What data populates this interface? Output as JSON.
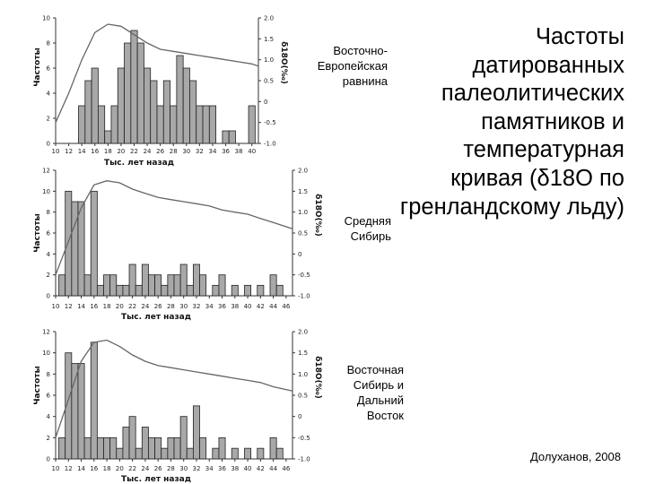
{
  "title": "Частоты датированных палеолитических памятников и температурная кривая (δ18О по гренландскому льду)",
  "source": "Долуханов, 2008",
  "colors": {
    "bar_fill": "#a8a8a8",
    "bar_stroke": "#222222",
    "curve": "#666666",
    "axis": "#333333"
  },
  "chart_data": [
    {
      "type": "bar",
      "region_label": "Восточно- Европейская равнина",
      "xlabel": "Тыс. лет назад",
      "ylabel": "Частоты",
      "y2label": "δ18O(‰)",
      "x_ticks": [
        "10",
        "12",
        "14",
        "16",
        "18",
        "20",
        "22",
        "24",
        "26",
        "28",
        "30",
        "32",
        "34",
        "36",
        "38",
        "40"
      ],
      "xlim": [
        10,
        41
      ],
      "ylim": [
        0,
        10
      ],
      "y_ticks": [
        "0",
        "2",
        "4",
        "6",
        "8",
        "10"
      ],
      "y2lim": [
        -1.0,
        2.0
      ],
      "y2_ticks": [
        "-1.0",
        "-0.5",
        "0",
        "0.5",
        "1.0",
        "1.5",
        "2.0"
      ],
      "bars": [
        {
          "x": 14,
          "value": 3
        },
        {
          "x": 15,
          "value": 5
        },
        {
          "x": 16,
          "value": 6
        },
        {
          "x": 17,
          "value": 3
        },
        {
          "x": 18,
          "value": 1
        },
        {
          "x": 19,
          "value": 3
        },
        {
          "x": 20,
          "value": 6
        },
        {
          "x": 21,
          "value": 8
        },
        {
          "x": 22,
          "value": 9
        },
        {
          "x": 23,
          "value": 8
        },
        {
          "x": 24,
          "value": 6
        },
        {
          "x": 25,
          "value": 5
        },
        {
          "x": 26,
          "value": 3
        },
        {
          "x": 27,
          "value": 5
        },
        {
          "x": 28,
          "value": 3
        },
        {
          "x": 29,
          "value": 7
        },
        {
          "x": 30,
          "value": 6
        },
        {
          "x": 31,
          "value": 5
        },
        {
          "x": 32,
          "value": 3
        },
        {
          "x": 33,
          "value": 3
        },
        {
          "x": 34,
          "value": 3
        },
        {
          "x": 36,
          "value": 1
        },
        {
          "x": 37,
          "value": 1
        },
        {
          "x": 40,
          "value": 3
        }
      ],
      "curve": {
        "x": [
          10,
          12,
          14,
          16,
          18,
          20,
          22,
          24,
          26,
          28,
          30,
          32,
          34,
          36,
          38,
          40,
          41
        ],
        "y": [
          -0.5,
          0.2,
          1.0,
          1.65,
          1.85,
          1.8,
          1.6,
          1.4,
          1.25,
          1.2,
          1.15,
          1.1,
          1.05,
          1.0,
          0.95,
          0.9,
          0.85
        ]
      }
    },
    {
      "type": "bar",
      "region_label": "Средняя Сибирь",
      "xlabel": "Тыс. лет назад",
      "ylabel": "Частоты",
      "y2label": "δ18O(‰)",
      "x_ticks": [
        "10",
        "12",
        "14",
        "16",
        "18",
        "20",
        "22",
        "24",
        "26",
        "28",
        "30",
        "32",
        "34",
        "36",
        "38",
        "40",
        "42",
        "44",
        "46"
      ],
      "xlim": [
        10,
        47
      ],
      "ylim": [
        0,
        12
      ],
      "y_ticks": [
        "0",
        "2",
        "4",
        "6",
        "8",
        "10",
        "12"
      ],
      "y2lim": [
        -1.0,
        2.0
      ],
      "y2_ticks": [
        "-1.0",
        "-0.5",
        "0",
        "0.5",
        "1.0",
        "1.5",
        "2.0"
      ],
      "bars": [
        {
          "x": 11,
          "value": 2
        },
        {
          "x": 12,
          "value": 10
        },
        {
          "x": 13,
          "value": 9
        },
        {
          "x": 14,
          "value": 9
        },
        {
          "x": 15,
          "value": 2
        },
        {
          "x": 16,
          "value": 10
        },
        {
          "x": 17,
          "value": 1
        },
        {
          "x": 18,
          "value": 2
        },
        {
          "x": 19,
          "value": 2
        },
        {
          "x": 20,
          "value": 1
        },
        {
          "x": 21,
          "value": 1
        },
        {
          "x": 22,
          "value": 3
        },
        {
          "x": 23,
          "value": 1
        },
        {
          "x": 24,
          "value": 3
        },
        {
          "x": 25,
          "value": 2
        },
        {
          "x": 26,
          "value": 2
        },
        {
          "x": 27,
          "value": 1
        },
        {
          "x": 28,
          "value": 2
        },
        {
          "x": 29,
          "value": 2
        },
        {
          "x": 30,
          "value": 3
        },
        {
          "x": 31,
          "value": 1
        },
        {
          "x": 32,
          "value": 3
        },
        {
          "x": 33,
          "value": 2
        },
        {
          "x": 35,
          "value": 1
        },
        {
          "x": 36,
          "value": 2
        },
        {
          "x": 38,
          "value": 1
        },
        {
          "x": 40,
          "value": 1
        },
        {
          "x": 42,
          "value": 1
        },
        {
          "x": 44,
          "value": 2
        },
        {
          "x": 45,
          "value": 1
        }
      ],
      "curve": {
        "x": [
          10,
          12,
          14,
          16,
          18,
          20,
          22,
          24,
          26,
          28,
          30,
          32,
          34,
          36,
          38,
          40,
          42,
          44,
          47
        ],
        "y": [
          -0.5,
          0.3,
          1.1,
          1.65,
          1.75,
          1.7,
          1.55,
          1.45,
          1.35,
          1.3,
          1.25,
          1.2,
          1.15,
          1.05,
          1.0,
          0.95,
          0.85,
          0.75,
          0.6
        ]
      }
    },
    {
      "type": "bar",
      "region_label": "Восточная Сибирь и Дальний Восток",
      "xlabel": "Тыс. лет назад",
      "ylabel": "Частоты",
      "y2label": "δ18O(‰)",
      "x_ticks": [
        "10",
        "12",
        "14",
        "16",
        "18",
        "20",
        "22",
        "24",
        "26",
        "28",
        "30",
        "32",
        "34",
        "36",
        "38",
        "40",
        "42",
        "44",
        "46"
      ],
      "xlim": [
        10,
        47
      ],
      "ylim": [
        0,
        12
      ],
      "y_ticks": [
        "0",
        "2",
        "4",
        "6",
        "8",
        "10",
        "12"
      ],
      "y2lim": [
        -1.0,
        2.0
      ],
      "y2_ticks": [
        "-1.0",
        "-0.5",
        "0",
        "0.5",
        "1.0",
        "1.5",
        "2.0"
      ],
      "bars": [
        {
          "x": 11,
          "value": 2
        },
        {
          "x": 12,
          "value": 10
        },
        {
          "x": 13,
          "value": 9
        },
        {
          "x": 14,
          "value": 9
        },
        {
          "x": 15,
          "value": 2
        },
        {
          "x": 16,
          "value": 11
        },
        {
          "x": 17,
          "value": 2
        },
        {
          "x": 18,
          "value": 2
        },
        {
          "x": 19,
          "value": 2
        },
        {
          "x": 20,
          "value": 1
        },
        {
          "x": 21,
          "value": 3
        },
        {
          "x": 22,
          "value": 4
        },
        {
          "x": 23,
          "value": 1
        },
        {
          "x": 24,
          "value": 3
        },
        {
          "x": 25,
          "value": 2
        },
        {
          "x": 26,
          "value": 2
        },
        {
          "x": 27,
          "value": 1
        },
        {
          "x": 28,
          "value": 2
        },
        {
          "x": 29,
          "value": 2
        },
        {
          "x": 30,
          "value": 4
        },
        {
          "x": 31,
          "value": 1
        },
        {
          "x": 32,
          "value": 5
        },
        {
          "x": 33,
          "value": 2
        },
        {
          "x": 35,
          "value": 1
        },
        {
          "x": 36,
          "value": 2
        },
        {
          "x": 38,
          "value": 1
        },
        {
          "x": 40,
          "value": 1
        },
        {
          "x": 42,
          "value": 1
        },
        {
          "x": 44,
          "value": 2
        },
        {
          "x": 45,
          "value": 1
        }
      ],
      "curve": {
        "x": [
          10,
          12,
          14,
          16,
          18,
          20,
          22,
          24,
          26,
          28,
          30,
          32,
          34,
          36,
          38,
          40,
          42,
          44,
          47
        ],
        "y": [
          -0.5,
          0.4,
          1.3,
          1.75,
          1.8,
          1.65,
          1.45,
          1.3,
          1.2,
          1.15,
          1.1,
          1.05,
          1.0,
          0.95,
          0.9,
          0.85,
          0.8,
          0.7,
          0.6
        ]
      }
    }
  ]
}
